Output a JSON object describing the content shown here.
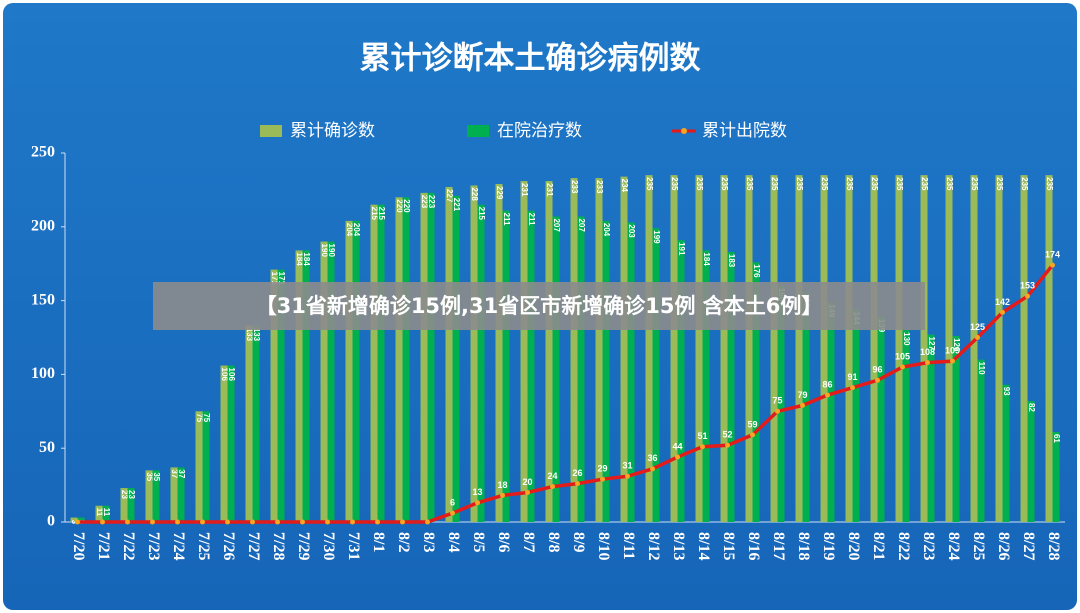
{
  "chart_data": {
    "type": "bar",
    "title": "累计诊断本土确诊病例数",
    "categories": [
      "7/20",
      "7/21",
      "7/22",
      "7/23",
      "7/24",
      "7/25",
      "7/26",
      "7/27",
      "7/28",
      "7/29",
      "7/30",
      "7/31",
      "8/1",
      "8/2",
      "8/3",
      "8/4",
      "8/5",
      "8/6",
      "8/7",
      "8/8",
      "8/9",
      "8/10",
      "8/11",
      "8/12",
      "8/13",
      "8/14",
      "8/15",
      "8/16",
      "8/17",
      "8/18",
      "8/19",
      "8/20",
      "8/21",
      "8/22",
      "8/23",
      "8/24",
      "8/25",
      "8/26",
      "8/27",
      "8/28"
    ],
    "series": [
      {
        "name": "累计确诊数",
        "color": "#9bbb59",
        "values": [
          3,
          11,
          23,
          35,
          37,
          75,
          106,
          133,
          171,
          184,
          190,
          204,
          215,
          220,
          223,
          227,
          228,
          229,
          231,
          231,
          233,
          233,
          234,
          235,
          235,
          235,
          235,
          235,
          235,
          235,
          235,
          235,
          235,
          235,
          235,
          235,
          235,
          235,
          235,
          235
        ]
      },
      {
        "name": "在院治疗数",
        "color": "#00b050",
        "values": [
          3,
          11,
          23,
          35,
          37,
          75,
          106,
          133,
          171,
          184,
          190,
          204,
          215,
          220,
          223,
          221,
          215,
          211,
          211,
          207,
          207,
          204,
          203,
          199,
          191,
          184,
          183,
          176,
          160,
          156,
          149,
          144,
          139,
          130,
          127,
          126,
          110,
          93,
          82,
          61
        ]
      },
      {
        "name": "累计出院数",
        "type": "line",
        "color": "#e31b1b",
        "marker_color": "#f5a623",
        "values": [
          0,
          0,
          0,
          0,
          0,
          0,
          0,
          0,
          0,
          0,
          0,
          0,
          0,
          0,
          0,
          6,
          13,
          18,
          20,
          24,
          26,
          29,
          31,
          36,
          44,
          51,
          52,
          59,
          75,
          79,
          86,
          91,
          96,
          105,
          108,
          109,
          125,
          142,
          153,
          174
        ]
      }
    ],
    "ylim": [
      0,
      250
    ],
    "yticks": [
      0,
      50,
      100,
      150,
      200,
      250
    ],
    "grid": false,
    "legend": "top"
  },
  "overlay_banner": "【31省新增确诊15例,31省区市新增确诊15例 含本土6例】"
}
